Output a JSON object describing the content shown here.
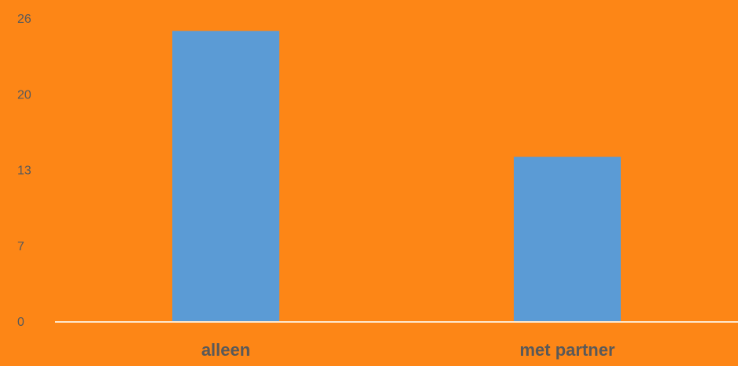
{
  "colors": {
    "background": "#FD8616",
    "bar": "#5B9BD5",
    "axis": "#FFE8CC",
    "text": "#595959"
  },
  "chart_data": {
    "type": "bar",
    "categories": [
      "alleen",
      "met partner"
    ],
    "values": [
      24.9,
      14.1
    ],
    "y_ticks": [
      "0",
      "7",
      "13",
      "20",
      "26"
    ],
    "y_tick_values": [
      0,
      6.5,
      13,
      19.5,
      26
    ],
    "ylim": [
      0,
      26
    ],
    "title": "",
    "xlabel": "",
    "ylabel": "",
    "grid": false,
    "legend": "none"
  }
}
